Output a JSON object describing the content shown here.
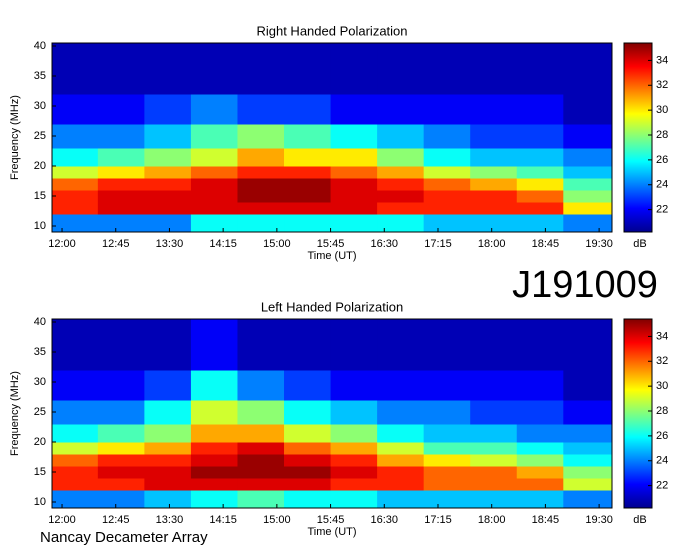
{
  "source_id": "J191009",
  "footer": "Nancay Decameter Array",
  "chart_data": [
    {
      "type": "heatmap",
      "title": "Right Handed Polarization",
      "xlabel": "Time (UT)",
      "ylabel": "Frequency (MHz)",
      "colormap": "jet",
      "xlim": [
        11.86,
        19.68
      ],
      "xticks": [
        {
          "value": 12,
          "label": "12:00"
        },
        {
          "value": 12.75,
          "label": "12:45"
        },
        {
          "value": 13.5,
          "label": "13:30"
        },
        {
          "value": 14.25,
          "label": "14:15"
        },
        {
          "value": 15,
          "label": "15:00"
        },
        {
          "value": 15.75,
          "label": "15:45"
        },
        {
          "value": 16.5,
          "label": "16:30"
        },
        {
          "value": 17.25,
          "label": "17:15"
        },
        {
          "value": 18,
          "label": "18:00"
        },
        {
          "value": 18.75,
          "label": "18:45"
        },
        {
          "value": 19.5,
          "label": "19:30"
        }
      ],
      "ylim": [
        9,
        40.5
      ],
      "yticks": [
        10,
        15,
        20,
        25,
        30,
        35,
        40
      ],
      "x_edges": [
        11.86,
        12.5,
        13.15,
        13.8,
        14.45,
        15.1,
        15.75,
        16.4,
        17.05,
        17.7,
        18.35,
        19.0,
        19.68
      ],
      "y_edges": [
        9,
        12,
        14,
        16,
        18,
        20,
        23,
        27,
        32,
        40.5
      ],
      "values": [
        [
          24,
          24,
          24,
          26,
          26,
          26,
          26,
          26,
          25,
          25,
          25,
          24
        ],
        [
          33,
          34,
          34,
          34,
          34,
          34,
          34,
          33,
          33,
          33,
          33,
          30
        ],
        [
          33,
          34,
          34,
          34,
          35,
          35,
          34,
          34,
          33,
          33,
          32,
          28
        ],
        [
          32,
          33,
          33,
          34,
          35,
          35,
          34,
          33,
          32,
          31,
          30,
          27
        ],
        [
          29,
          30,
          31,
          32,
          33,
          33,
          32,
          31,
          29,
          28,
          27,
          25
        ],
        [
          26,
          27,
          28,
          29,
          31,
          30,
          30,
          28,
          26,
          25,
          25,
          24
        ],
        [
          24,
          24,
          25,
          27,
          28,
          27,
          26,
          25,
          24,
          23,
          23,
          22
        ],
        [
          22,
          22,
          23,
          24,
          23,
          23,
          22,
          22,
          22,
          22,
          22,
          21
        ],
        [
          21,
          21,
          21,
          21,
          21,
          21,
          21,
          21,
          21,
          21,
          21,
          21
        ]
      ],
      "colorbar": {
        "label": "dB",
        "clim": [
          20.2,
          35.4
        ],
        "ticks": [
          22,
          24,
          26,
          28,
          30,
          32,
          34
        ]
      }
    },
    {
      "type": "heatmap",
      "title": "Left Handed Polarization",
      "xlabel": "Time (UT)",
      "ylabel": "Frequency (MHz)",
      "colormap": "jet",
      "xlim": [
        11.86,
        19.68
      ],
      "xticks": [
        {
          "value": 12,
          "label": "12:00"
        },
        {
          "value": 12.75,
          "label": "12:45"
        },
        {
          "value": 13.5,
          "label": "13:30"
        },
        {
          "value": 14.25,
          "label": "14:15"
        },
        {
          "value": 15,
          "label": "15:00"
        },
        {
          "value": 15.75,
          "label": "15:45"
        },
        {
          "value": 16.5,
          "label": "16:30"
        },
        {
          "value": 17.25,
          "label": "17:15"
        },
        {
          "value": 18,
          "label": "18:00"
        },
        {
          "value": 18.75,
          "label": "18:45"
        },
        {
          "value": 19.5,
          "label": "19:30"
        }
      ],
      "ylim": [
        9,
        40.5
      ],
      "yticks": [
        10,
        15,
        20,
        25,
        30,
        35,
        40
      ],
      "x_edges": [
        11.86,
        12.5,
        13.15,
        13.8,
        14.45,
        15.1,
        15.75,
        16.4,
        17.05,
        17.7,
        18.35,
        19.0,
        19.68
      ],
      "y_edges": [
        9,
        12,
        14,
        16,
        18,
        20,
        23,
        27,
        32,
        40.5
      ],
      "values": [
        [
          24,
          24,
          25,
          26,
          27,
          26,
          26,
          25,
          25,
          25,
          25,
          24
        ],
        [
          33,
          33,
          34,
          34,
          34,
          34,
          33,
          33,
          32,
          32,
          32,
          29
        ],
        [
          33,
          34,
          34,
          35,
          35,
          35,
          34,
          33,
          32,
          32,
          31,
          28
        ],
        [
          32,
          33,
          33,
          34,
          35,
          34,
          33,
          31,
          30,
          29,
          28,
          26
        ],
        [
          29,
          30,
          31,
          33,
          34,
          32,
          31,
          29,
          27,
          27,
          26,
          25
        ],
        [
          26,
          27,
          28,
          31,
          31,
          29,
          28,
          26,
          25,
          25,
          24,
          24
        ],
        [
          24,
          24,
          26,
          29,
          28,
          26,
          25,
          24,
          24,
          23,
          23,
          22
        ],
        [
          22,
          22,
          23,
          26,
          24,
          23,
          22,
          22,
          22,
          22,
          22,
          21
        ],
        [
          21,
          21,
          21,
          22,
          21,
          21,
          21,
          21,
          21,
          21,
          21,
          21
        ]
      ],
      "colorbar": {
        "label": "dB",
        "clim": [
          20.2,
          35.4
        ],
        "ticks": [
          22,
          24,
          26,
          28,
          30,
          32,
          34
        ]
      }
    }
  ]
}
